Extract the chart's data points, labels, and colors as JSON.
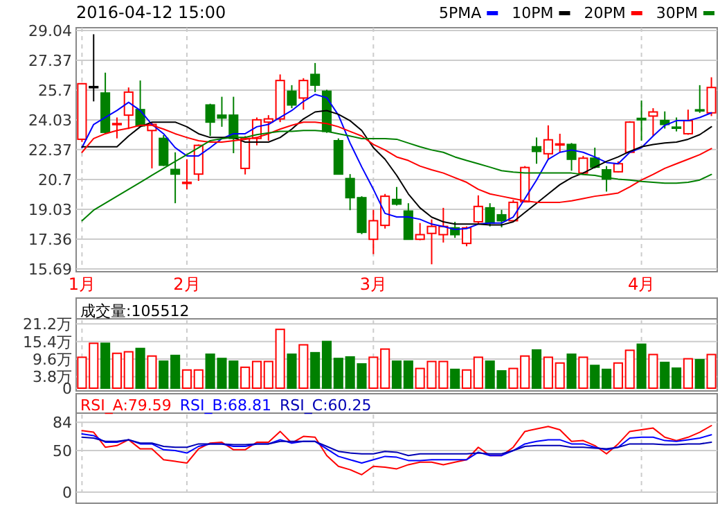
{
  "chart_data": [
    {
      "type": "candlestick",
      "title": "2016-04-12 15:00",
      "categories": [
        "1月",
        null,
        null,
        null,
        null,
        null,
        null,
        null,
        null,
        "2月",
        null,
        null,
        null,
        null,
        null,
        null,
        null,
        null,
        null,
        null,
        null,
        null,
        null,
        null,
        null,
        "3月",
        null,
        null,
        null,
        null,
        null,
        null,
        null,
        null,
        null,
        null,
        null,
        null,
        null,
        null,
        null,
        null,
        null,
        null,
        null,
        null,
        null,
        null,
        "4月",
        null,
        null,
        null,
        null,
        null,
        null
      ],
      "ohlc": [
        [
          22.95,
          26.1,
          22.8,
          26.06
        ],
        [
          25.9,
          28.83,
          25.07,
          25.9
        ],
        [
          25.54,
          26.68,
          23.26,
          23.34
        ],
        [
          23.83,
          24.17,
          23.0,
          23.83
        ],
        [
          24.3,
          25.85,
          23.52,
          25.59
        ],
        [
          24.61,
          26.24,
          23.65,
          23.7
        ],
        [
          23.44,
          23.91,
          21.32,
          23.78
        ],
        [
          23.0,
          23.18,
          21.45,
          21.5
        ],
        [
          21.26,
          22.22,
          19.37,
          21.0
        ],
        [
          20.54,
          21.83,
          20.15,
          20.54
        ],
        [
          21.0,
          22.66,
          20.62,
          22.61
        ],
        [
          24.87,
          24.94,
          23.13,
          23.91
        ],
        [
          24.3,
          25.33,
          23.65,
          24.14
        ],
        [
          24.3,
          25.33,
          22.17,
          23.0
        ],
        [
          21.32,
          23.13,
          20.98,
          23.0
        ],
        [
          23.0,
          24.17,
          22.61,
          24.04
        ],
        [
          23.91,
          24.3,
          22.87,
          24.09
        ],
        [
          24.09,
          26.58,
          23.91,
          26.24
        ],
        [
          25.64,
          25.98,
          24.69,
          24.87
        ],
        [
          25.26,
          26.37,
          24.61,
          26.24
        ],
        [
          26.58,
          27.22,
          25.59,
          25.98
        ],
        [
          25.64,
          25.72,
          23.31,
          23.39
        ],
        [
          22.87,
          23.0,
          21.0,
          21.0
        ],
        [
          20.75,
          21.0,
          18.98,
          19.68
        ],
        [
          19.68,
          19.76,
          17.64,
          17.74
        ],
        [
          17.35,
          19.0,
          16.52,
          18.39
        ],
        [
          18.13,
          19.89,
          17.95,
          19.76
        ],
        [
          19.58,
          20.28,
          19.24,
          19.32
        ],
        [
          18.93,
          19.37,
          17.35,
          17.35
        ],
        [
          17.35,
          18.26,
          17.3,
          17.61
        ],
        [
          17.68,
          18.46,
          15.95,
          18.07
        ],
        [
          17.61,
          19.11,
          17.17,
          18.07
        ],
        [
          17.99,
          18.33,
          17.43,
          17.61
        ],
        [
          17.12,
          18.07,
          16.96,
          17.99
        ],
        [
          18.33,
          19.81,
          18.2,
          19.19
        ],
        [
          19.11,
          19.37,
          18.07,
          18.26
        ],
        [
          18.72,
          19.0,
          18.02,
          18.39
        ],
        [
          18.39,
          19.55,
          18.33,
          19.42
        ],
        [
          19.45,
          21.45,
          19.45,
          21.37
        ],
        [
          22.53,
          23.05,
          21.58,
          22.27
        ],
        [
          22.14,
          23.73,
          21.83,
          22.92
        ],
        [
          22.65,
          23.26,
          22.22,
          22.69
        ],
        [
          22.66,
          22.74,
          21.19,
          21.83
        ],
        [
          21.06,
          22.02,
          20.98,
          21.89
        ],
        [
          21.89,
          22.48,
          21.32,
          21.39
        ],
        [
          21.24,
          21.45,
          20.02,
          20.72
        ],
        [
          21.13,
          21.71,
          21.1,
          21.58
        ],
        [
          22.22,
          23.96,
          22.17,
          23.91
        ],
        [
          24.12,
          25.12,
          22.87,
          24.04
        ],
        [
          24.25,
          24.69,
          23.13,
          24.48
        ],
        [
          24.0,
          24.51,
          23.55,
          23.78
        ],
        [
          23.63,
          24.17,
          23.39,
          23.6
        ],
        [
          23.26,
          24.61,
          23.2,
          23.99
        ],
        [
          24.6,
          25.98,
          24.43,
          24.56
        ],
        [
          24.43,
          26.42,
          24.25,
          25.85
        ]
      ],
      "colors": [
        "#ff0000",
        "#000000",
        "#008000",
        "#ff0000",
        "#ff0000",
        "#008000",
        "#ff0000",
        "#008000",
        "#008000",
        "#ff0000",
        "#ff0000",
        "#008000",
        "#008000",
        "#008000",
        "#ff0000",
        "#ff0000",
        "#ff0000",
        "#ff0000",
        "#008000",
        "#ff0000",
        "#008000",
        "#008000",
        "#008000",
        "#008000",
        "#008000",
        "#ff0000",
        "#ff0000",
        "#008000",
        "#008000",
        "#ff0000",
        "#ff0000",
        "#ff0000",
        "#008000",
        "#ff0000",
        "#ff0000",
        "#008000",
        "#008000",
        "#ff0000",
        "#ff0000",
        "#008000",
        "#ff0000",
        "#ff0000",
        "#008000",
        "#ff0000",
        "#008000",
        "#008000",
        "#ff0000",
        "#ff0000",
        "#008000",
        "#ff0000",
        "#008000",
        "#008000",
        "#ff0000",
        "#008000",
        "#ff0000"
      ],
      "series": [
        {
          "name": "5PMA",
          "type": "line",
          "color": "#0000ff",
          "values": [
            22.48,
            23.78,
            24.17,
            24.56,
            25.02,
            24.56,
            23.78,
            23.26,
            22.48,
            22.02,
            22.02,
            22.48,
            22.99,
            23.26,
            23.26,
            23.65,
            23.78,
            24.17,
            24.56,
            25.07,
            25.46,
            25.28,
            24.3,
            22.74,
            21.4,
            20.15,
            18.8,
            18.6,
            18.6,
            18.47,
            18.2,
            18.07,
            17.9,
            17.95,
            18.2,
            18.26,
            18.26,
            18.6,
            19.63,
            20.67,
            21.83,
            22.22,
            22.35,
            22.22,
            21.96,
            21.65,
            21.58,
            22.22,
            22.48,
            23.13,
            23.73,
            23.99,
            23.99,
            24.17,
            24.43
          ]
        },
        {
          "name": "10PM",
          "type": "line",
          "color": "#000000",
          "values": [
            22.53,
            22.53,
            22.53,
            22.53,
            23.13,
            23.65,
            23.91,
            23.91,
            23.91,
            23.65,
            23.26,
            23.05,
            23.05,
            23.05,
            22.79,
            22.79,
            22.79,
            23.05,
            23.52,
            24.09,
            24.48,
            24.56,
            24.35,
            23.99,
            23.44,
            22.48,
            21.83,
            20.93,
            19.89,
            19.11,
            18.59,
            18.33,
            18.2,
            18.2,
            18.2,
            18.15,
            18.15,
            18.33,
            18.85,
            19.37,
            19.89,
            20.41,
            20.8,
            21.06,
            21.39,
            21.71,
            21.96,
            22.27,
            22.53,
            22.66,
            22.74,
            22.79,
            22.95,
            23.21,
            23.65
          ]
        },
        {
          "name": "20PM",
          "type": "line",
          "color": "#ff0000",
          "values": [
            22.22,
            22.99,
            23.26,
            23.44,
            23.57,
            23.73,
            23.73,
            23.52,
            23.26,
            23.05,
            22.87,
            22.79,
            22.79,
            22.87,
            22.95,
            23.05,
            23.26,
            23.52,
            23.73,
            23.91,
            23.91,
            23.83,
            23.65,
            23.39,
            23.13,
            22.66,
            22.35,
            21.96,
            21.76,
            21.45,
            21.24,
            21.06,
            20.8,
            20.54,
            20.15,
            19.89,
            19.76,
            19.63,
            19.5,
            19.42,
            19.42,
            19.42,
            19.5,
            19.63,
            19.76,
            19.84,
            19.94,
            20.28,
            20.67,
            20.98,
            21.32,
            21.58,
            21.83,
            22.09,
            22.43
          ]
        },
        {
          "name": "30PM",
          "type": "line",
          "color": "#008000",
          "values": [
            18.39,
            18.98,
            19.37,
            19.76,
            20.15,
            20.54,
            20.93,
            21.32,
            21.71,
            22.09,
            22.48,
            22.87,
            22.99,
            23.05,
            23.05,
            23.21,
            23.31,
            23.39,
            23.39,
            23.44,
            23.44,
            23.39,
            23.26,
            23.13,
            22.99,
            22.99,
            22.99,
            22.95,
            22.74,
            22.53,
            22.35,
            22.22,
            21.96,
            21.76,
            21.58,
            21.39,
            21.19,
            21.11,
            21.06,
            21.06,
            21.06,
            21.06,
            21.06,
            20.98,
            20.93,
            20.8,
            20.72,
            20.67,
            20.59,
            20.54,
            20.49,
            20.49,
            20.54,
            20.67,
            20.98
          ]
        }
      ],
      "ylim": [
        15.69,
        29.04
      ],
      "yticks": [
        29.04,
        27.37,
        25.7,
        24.03,
        22.37,
        20.7,
        19.03,
        17.36,
        15.69
      ],
      "grid": true,
      "legend": "top right"
    },
    {
      "type": "bar",
      "annotations": [
        "成交量:105512"
      ],
      "categories": [
        null,
        null,
        null,
        null,
        null,
        null,
        null,
        null,
        null,
        null,
        null,
        null,
        null,
        null,
        null,
        null,
        null,
        null,
        null,
        null,
        null,
        null,
        null,
        null,
        null,
        null,
        null,
        null,
        null,
        null,
        null,
        null,
        null,
        null,
        null,
        null,
        null,
        null,
        null,
        null,
        null,
        null,
        null,
        null,
        null,
        null,
        null,
        null,
        null,
        null,
        null,
        null,
        null,
        null,
        null
      ],
      "values": [
        10.2,
        14.8,
        14.8,
        11.5,
        12.0,
        13.1,
        10.6,
        8.9,
        10.8,
        6.0,
        6.0,
        11.2,
        9.8,
        8.9,
        6.9,
        8.8,
        8.8,
        19.4,
        11.2,
        14.3,
        11.7,
        15.4,
        9.8,
        10.3,
        8.0,
        10.2,
        12.9,
        8.9,
        8.9,
        6.5,
        8.8,
        8.8,
        6.2,
        6.0,
        10.2,
        8.9,
        5.7,
        6.5,
        10.6,
        12.6,
        10.2,
        8.3,
        11.2,
        10.2,
        7.5,
        6.2,
        8.3,
        12.5,
        14.5,
        11.1,
        8.5,
        6.6,
        9.7,
        9.4,
        11.1
      ],
      "colors": [
        "#ff0000",
        "#ff0000",
        "#008000",
        "#ff0000",
        "#ff0000",
        "#008000",
        "#ff0000",
        "#008000",
        "#008000",
        "#ff0000",
        "#ff0000",
        "#008000",
        "#008000",
        "#008000",
        "#ff0000",
        "#ff0000",
        "#ff0000",
        "#ff0000",
        "#008000",
        "#ff0000",
        "#008000",
        "#008000",
        "#008000",
        "#008000",
        "#008000",
        "#ff0000",
        "#ff0000",
        "#008000",
        "#008000",
        "#ff0000",
        "#ff0000",
        "#ff0000",
        "#008000",
        "#ff0000",
        "#ff0000",
        "#008000",
        "#008000",
        "#ff0000",
        "#ff0000",
        "#008000",
        "#ff0000",
        "#ff0000",
        "#008000",
        "#ff0000",
        "#008000",
        "#008000",
        "#ff0000",
        "#ff0000",
        "#008000",
        "#ff0000",
        "#008000",
        "#008000",
        "#ff0000",
        "#008000",
        "#ff0000"
      ],
      "ylim": [
        0,
        21.5
      ],
      "yticks": [
        {
          "value": 21.2,
          "label": "21.2万"
        },
        {
          "value": 15.4,
          "label": "15.4万"
        },
        {
          "value": 9.6,
          "label": "9.6万"
        },
        {
          "value": 3.8,
          "label": "3.8万"
        },
        0
      ],
      "grid": true,
      "tick_labels": "y"
    },
    {
      "type": "line",
      "categories": [
        null,
        null,
        null,
        null,
        null,
        null,
        null,
        null,
        null,
        null,
        null,
        null,
        null,
        null,
        null,
        null,
        null,
        null,
        null,
        null,
        null,
        null,
        null,
        null,
        null,
        null,
        null,
        null,
        null,
        null,
        null,
        null,
        null,
        null,
        null,
        null,
        null,
        null,
        null,
        null,
        null,
        null,
        null,
        null,
        null,
        null,
        null,
        null,
        null,
        null,
        null,
        null,
        null,
        null,
        null
      ],
      "series": [
        {
          "name": "RSI_A:79.59",
          "color": "#ff0000",
          "values": [
            74,
            72,
            54,
            56,
            63,
            52,
            52,
            39,
            37,
            35,
            52,
            59,
            60,
            51,
            51,
            60,
            60,
            73,
            59,
            67,
            66,
            44,
            31,
            27,
            21,
            31,
            30,
            28,
            33,
            36,
            36,
            33,
            36,
            39,
            54,
            44,
            44,
            54,
            73,
            76,
            79,
            75,
            61,
            62,
            56,
            46,
            58,
            73,
            75,
            77,
            66,
            62,
            66,
            72,
            80
          ]
        },
        {
          "name": "RSI_B:68.81",
          "color": "#0000ff",
          "values": [
            70,
            68,
            60,
            60,
            63,
            58,
            58,
            51,
            50,
            47,
            55,
            58,
            58,
            55,
            55,
            58,
            58,
            63,
            59,
            61,
            61,
            52,
            43,
            39,
            35,
            39,
            43,
            42,
            38,
            38,
            39,
            39,
            39,
            39,
            48,
            44,
            44,
            50,
            58,
            61,
            63,
            63,
            58,
            58,
            54,
            51,
            54,
            65,
            66,
            66,
            62,
            61,
            63,
            65,
            69
          ]
        },
        {
          "name": "RSI_C:60.25",
          "color": "#0000b4",
          "values": [
            66,
            65,
            61,
            61,
            63,
            59,
            59,
            55,
            54,
            54,
            58,
            58,
            58,
            57,
            57,
            58,
            58,
            61,
            61,
            61,
            61,
            55,
            49,
            47,
            46,
            46,
            49,
            48,
            44,
            46,
            46,
            46,
            46,
            46,
            47,
            46,
            46,
            50,
            55,
            56,
            56,
            56,
            54,
            54,
            53,
            52,
            54,
            58,
            58,
            58,
            57,
            57,
            58,
            58,
            60
          ]
        }
      ],
      "ylim": [
        0,
        90
      ],
      "yticks": [
        84,
        50,
        0
      ],
      "grid": true,
      "legend": "top left",
      "tick_labels": "y"
    }
  ]
}
